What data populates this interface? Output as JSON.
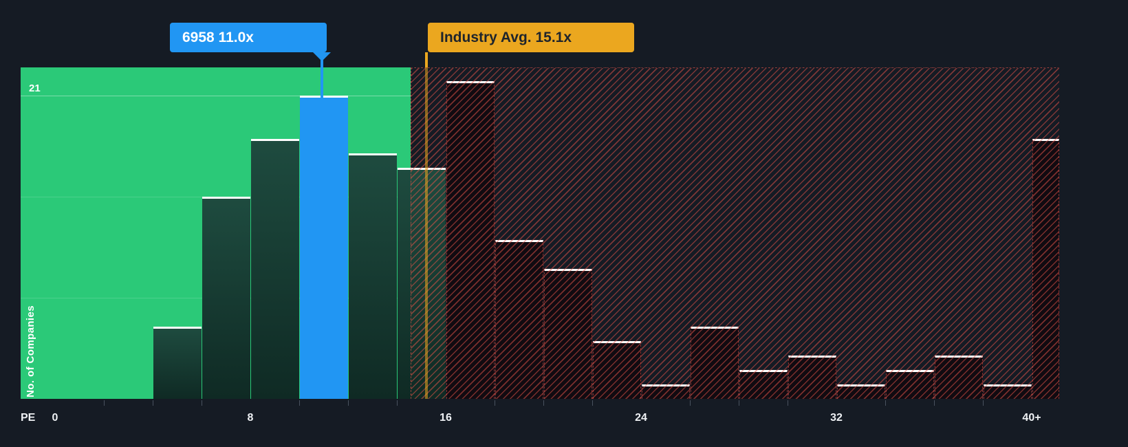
{
  "colors": {
    "background": "#151B24",
    "undervalued_zone_green": "#2BC978",
    "company_highlight_blue": "#2196F3",
    "overvalued_hatch_red": "#E8544A",
    "industry_avg_gold": "#EBA71F",
    "bar_top_edge_white": "#FFFFFF",
    "axis_text": "#EEF1F4",
    "industry_callout_text": "#1E242C"
  },
  "callouts": {
    "company_label": "6958 11.0x",
    "industry_label": "Industry Avg. 15.1x"
  },
  "y_axis": {
    "title": "No. of Companies",
    "max_label": "21"
  },
  "x_axis": {
    "title": "PE",
    "ticks": [
      {
        "label": "0",
        "value": 0
      },
      {
        "label": "8",
        "value": 8
      },
      {
        "label": "16",
        "value": 16
      },
      {
        "label": "24",
        "value": 24
      },
      {
        "label": "32",
        "value": 32
      },
      {
        "label": "40+",
        "value": 40
      }
    ]
  },
  "chart_data": {
    "type": "bar",
    "xlabel": "PE",
    "ylabel": "No. of Companies",
    "x_tick_labels": [
      "0",
      "8",
      "16",
      "24",
      "32",
      "40+"
    ],
    "y_max_gridline": 21,
    "y_gridlines": [
      7,
      14,
      21
    ],
    "bin_width": 2,
    "company": {
      "name": "6958",
      "pe": 11.0,
      "label": "6958 11.0x",
      "bin": "10-12"
    },
    "industry_avg": {
      "value": 15.1,
      "label": "Industry Avg. 15.1x"
    },
    "zones": {
      "undervalued": "solid green region left of industry average",
      "overvalued": "red diagonal-hatched region right of industry average"
    },
    "bars": [
      {
        "range": "0-2",
        "from": 0,
        "to": 2,
        "value": 0,
        "zone": "undervalued"
      },
      {
        "range": "2-4",
        "from": 2,
        "to": 4,
        "value": 0,
        "zone": "undervalued"
      },
      {
        "range": "4-6",
        "from": 4,
        "to": 6,
        "value": 5,
        "zone": "undervalued"
      },
      {
        "range": "6-8",
        "from": 6,
        "to": 8,
        "value": 14,
        "zone": "undervalued"
      },
      {
        "range": "8-10",
        "from": 8,
        "to": 10,
        "value": 18,
        "zone": "undervalued"
      },
      {
        "range": "10-12",
        "from": 10,
        "to": 12,
        "value": 21,
        "zone": "undervalued",
        "highlight": true
      },
      {
        "range": "12-14",
        "from": 12,
        "to": 14,
        "value": 17,
        "zone": "undervalued"
      },
      {
        "range": "14-16",
        "from": 14,
        "to": 16,
        "value": 16,
        "zone": "undervalued"
      },
      {
        "range": "16-18",
        "from": 16,
        "to": 18,
        "value": 22,
        "zone": "overvalued"
      },
      {
        "range": "18-20",
        "from": 18,
        "to": 20,
        "value": 11,
        "zone": "overvalued"
      },
      {
        "range": "20-22",
        "from": 20,
        "to": 22,
        "value": 9,
        "zone": "overvalued"
      },
      {
        "range": "22-24",
        "from": 22,
        "to": 24,
        "value": 4,
        "zone": "overvalued"
      },
      {
        "range": "24-26",
        "from": 24,
        "to": 26,
        "value": 1,
        "zone": "overvalued"
      },
      {
        "range": "26-28",
        "from": 26,
        "to": 28,
        "value": 5,
        "zone": "overvalued"
      },
      {
        "range": "28-30",
        "from": 28,
        "to": 30,
        "value": 2,
        "zone": "overvalued"
      },
      {
        "range": "30-32",
        "from": 30,
        "to": 32,
        "value": 3,
        "zone": "overvalued"
      },
      {
        "range": "32-34",
        "from": 32,
        "to": 34,
        "value": 1,
        "zone": "overvalued"
      },
      {
        "range": "34-36",
        "from": 34,
        "to": 36,
        "value": 2,
        "zone": "overvalued"
      },
      {
        "range": "36-38",
        "from": 36,
        "to": 38,
        "value": 3,
        "zone": "overvalued"
      },
      {
        "range": "38-40",
        "from": 38,
        "to": 40,
        "value": 1,
        "zone": "overvalued"
      },
      {
        "range": "40+",
        "from": 40,
        "to": 41.15,
        "value": 18,
        "zone": "overvalued"
      }
    ]
  }
}
